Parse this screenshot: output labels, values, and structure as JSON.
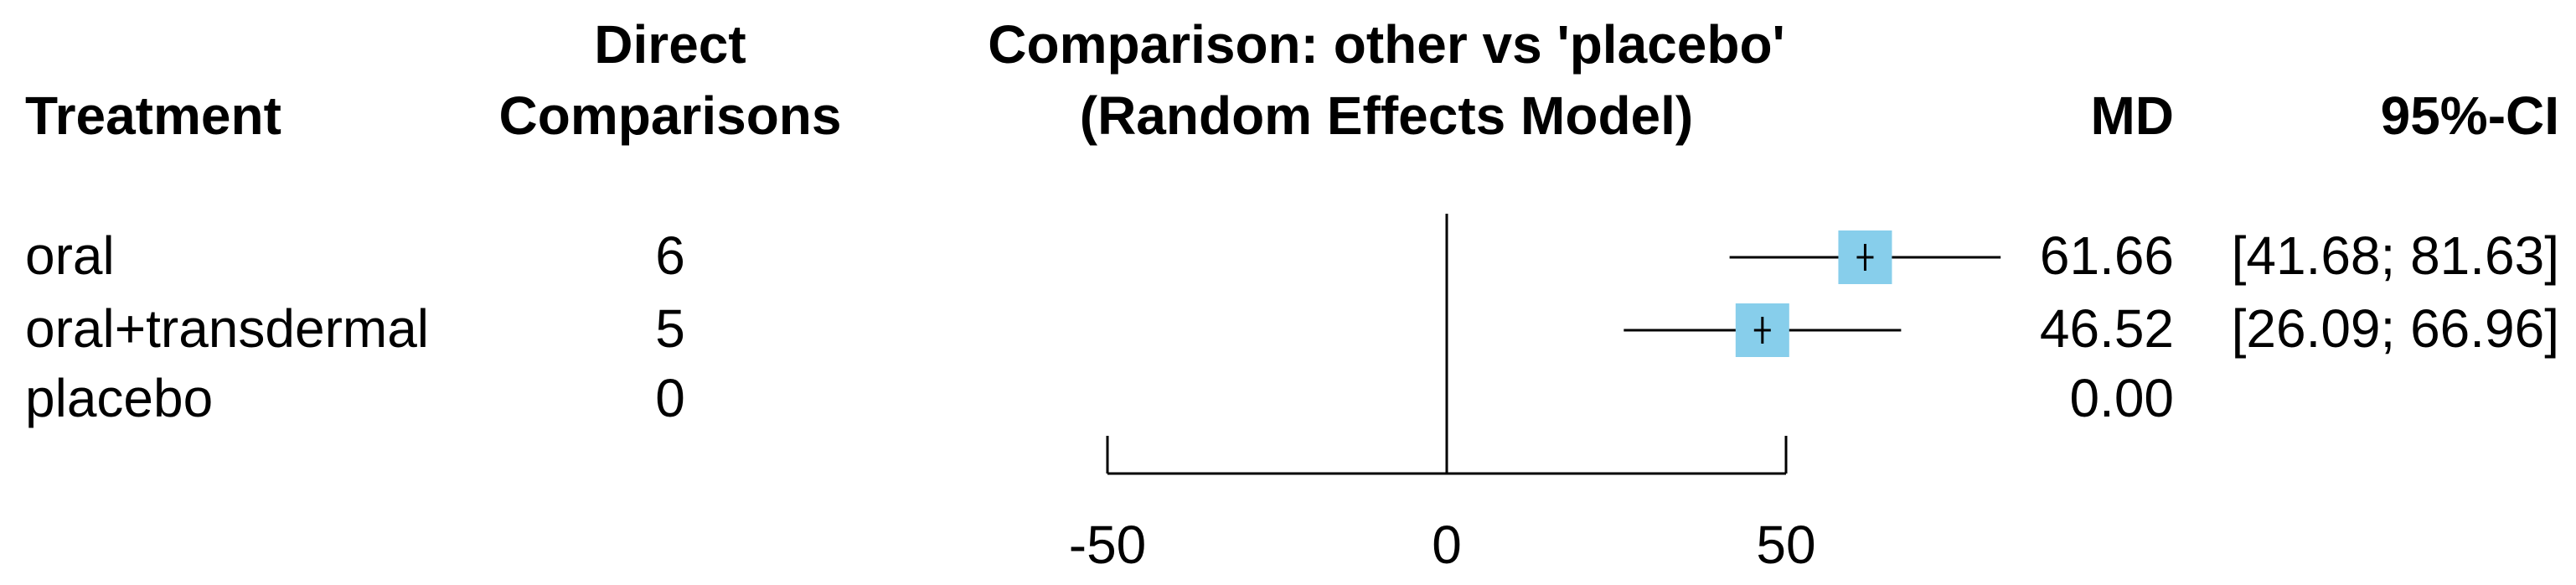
{
  "chart_data": {
    "type": "forest",
    "title": "Comparison: other vs 'placebo'",
    "subtitle": "(Random Effects Model)",
    "headers": {
      "treatment": "Treatment",
      "direct_line1": "Direct",
      "direct_line2": "Comparisons",
      "effect": "MD",
      "ci": "95%-CI"
    },
    "rows": [
      {
        "treatment": "oral",
        "direct": "6",
        "md": 61.66,
        "lower": 41.68,
        "upper": 81.63,
        "md_label": "61.66",
        "ci_label": "[41.68; 81.63]"
      },
      {
        "treatment": "oral+transdermal",
        "direct": "5",
        "md": 46.52,
        "lower": 26.09,
        "upper": 66.96,
        "md_label": "46.52",
        "ci_label": "[26.09; 66.96]"
      },
      {
        "treatment": "placebo",
        "direct": "0",
        "md": 0,
        "lower": null,
        "upper": null,
        "md_label": "0.00",
        "ci_label": ""
      }
    ],
    "xlim": [
      -50,
      50
    ],
    "ticks": [
      -50,
      0,
      50
    ],
    "tick_labels": [
      "-50",
      "0",
      "50"
    ],
    "reference_line": 0,
    "marker_color": "#87ceeb"
  }
}
